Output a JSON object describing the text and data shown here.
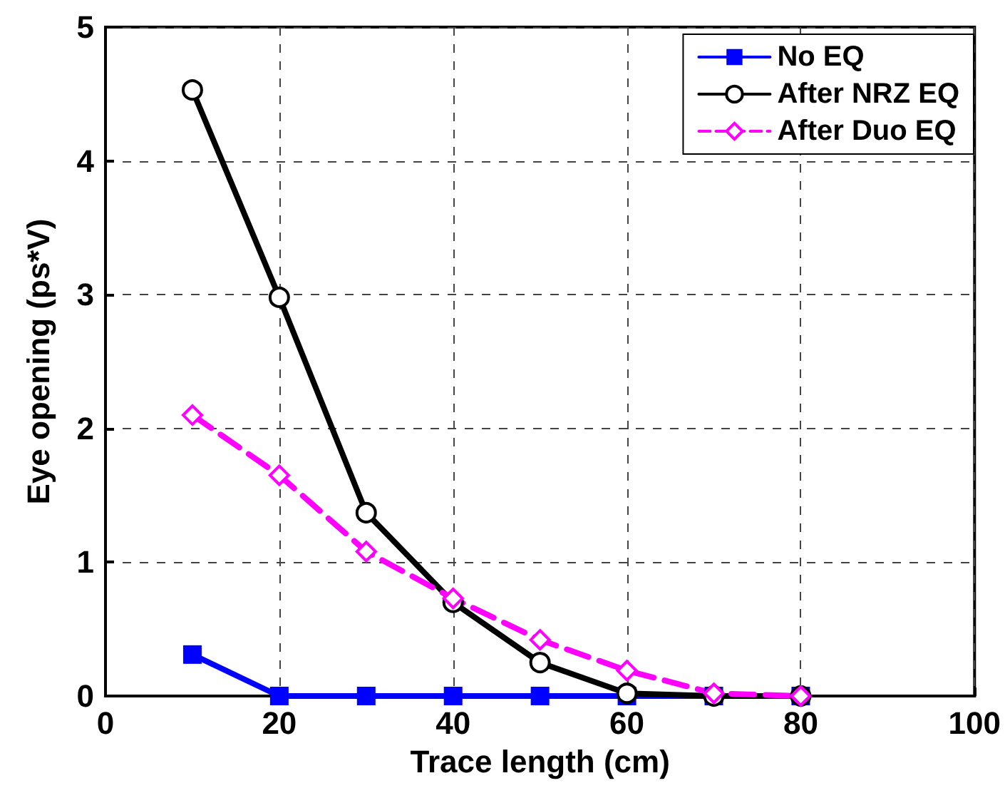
{
  "chart_data": {
    "type": "line",
    "xlabel": "Trace length (cm)",
    "ylabel": "Eye opening (ps*V)",
    "x": [
      10,
      20,
      30,
      40,
      50,
      60,
      70,
      80
    ],
    "series": [
      {
        "name": "No EQ",
        "color": "#0000ff",
        "marker": "square",
        "line_style": "solid",
        "values": [
          0.31,
          0,
          0,
          0,
          0,
          0,
          0,
          0
        ]
      },
      {
        "name": "After NRZ EQ",
        "color": "#000000",
        "marker": "circle",
        "line_style": "solid",
        "values": [
          4.53,
          2.98,
          1.37,
          0.7,
          0.25,
          0.02,
          0,
          0
        ]
      },
      {
        "name": "After Duo EQ",
        "color": "#ff00ff",
        "marker": "diamond",
        "line_style": "dashed",
        "values": [
          2.1,
          1.65,
          1.08,
          0.73,
          0.42,
          0.19,
          0.02,
          0
        ]
      }
    ],
    "xlim": [
      0,
      100
    ],
    "xticks": [
      0,
      20,
      40,
      60,
      80,
      100
    ],
    "ylim": [
      0,
      5
    ],
    "yticks": [
      0,
      1,
      2,
      3,
      4,
      5
    ],
    "grid": true,
    "legend": "top right"
  }
}
